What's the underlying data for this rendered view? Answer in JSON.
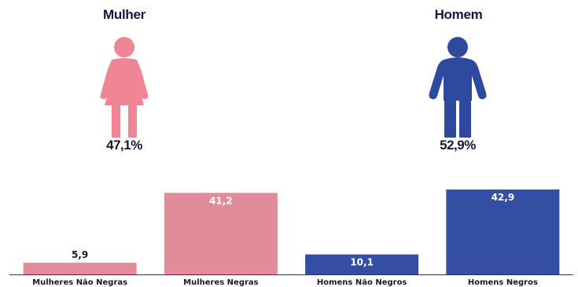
{
  "infographic": {
    "female": {
      "label": "Mulher",
      "percent": "47,1%",
      "icon": "woman-icon",
      "color": "#f08596"
    },
    "male": {
      "label": "Homem",
      "percent": "52,9%",
      "icon": "man-icon",
      "color": "#3049a0"
    }
  },
  "chart_data": {
    "type": "bar",
    "categories": [
      "Mulheres Não Negras",
      "Mulheres Negras",
      "Homens Não Negros",
      "Homens Negros"
    ],
    "values": [
      5.9,
      41.2,
      10.1,
      42.9
    ],
    "value_labels": [
      "5,9",
      "41,2",
      "10,1",
      "42,9"
    ],
    "colors": [
      "#e08c9a",
      "#e08c9a",
      "#344ea3",
      "#344ea3"
    ],
    "label_colors": [
      "#1a1a1a",
      "#ffffff",
      "#ffffff",
      "#ffffff"
    ],
    "title": "",
    "xlabel": "",
    "ylabel": "",
    "ylim": [
      0,
      42.9
    ],
    "grid": false,
    "legend": "none"
  }
}
